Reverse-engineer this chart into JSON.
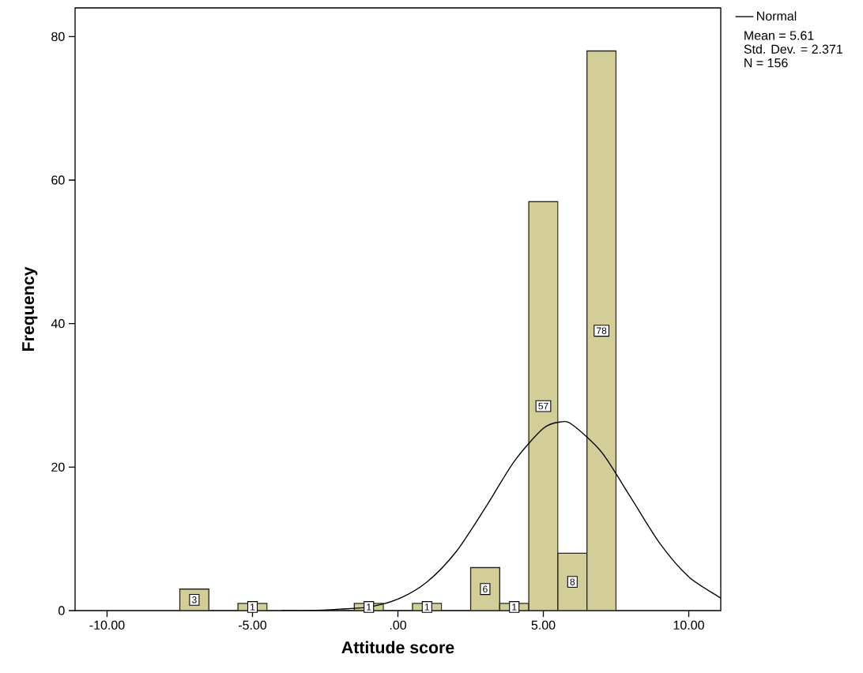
{
  "chart_data": {
    "type": "histogram",
    "xlabel": "Attitude score",
    "ylabel": "Frequency",
    "bins": [
      -7.5,
      -6.5,
      -5.5,
      -4.5,
      -3.5,
      -2.5,
      -1.5,
      -0.5,
      0.5,
      1.5,
      2.5,
      3.5,
      4.5,
      5.5,
      6.5,
      7.5
    ],
    "values": [
      3,
      0,
      1,
      0,
      0,
      0,
      1,
      0,
      1,
      0,
      6,
      1,
      57,
      8,
      78
    ],
    "value_labels": [
      "3",
      null,
      "1",
      null,
      null,
      null,
      "1",
      null,
      "1",
      null,
      "6",
      "1",
      "57",
      "8",
      "78"
    ],
    "color": "#d3ce98",
    "series": [
      {
        "type": "line",
        "name": "Normal",
        "color": "#000000",
        "x": [
          -4,
          -3,
          -2,
          -1,
          0,
          1,
          2,
          3,
          4,
          5,
          5.61,
          6,
          7,
          8,
          9,
          10,
          11,
          11.1
        ],
        "values": [
          0.0,
          0.0,
          0.2,
          0.5,
          1.6,
          4.0,
          8.2,
          14.3,
          20.8,
          25.4,
          26.3,
          25.9,
          22.1,
          15.8,
          9.4,
          4.7,
          2.0,
          1.8
        ]
      }
    ],
    "xlim": [
      -11.1,
      11.1
    ],
    "ylim": [
      0,
      84
    ],
    "xticks": [
      {
        "value": -10,
        "label": "-10.00"
      },
      {
        "value": -5,
        "label": "-5.00"
      },
      {
        "value": 0,
        "label": ".00"
      },
      {
        "value": 5,
        "label": "5.00"
      },
      {
        "value": 10,
        "label": "10.00"
      }
    ],
    "yticks": [
      0,
      20,
      40,
      60,
      80
    ],
    "legend": "top right",
    "annotations": [
      "Mean = 5.61",
      "Std. Dev. = 2.371",
      "N = 156"
    ]
  }
}
